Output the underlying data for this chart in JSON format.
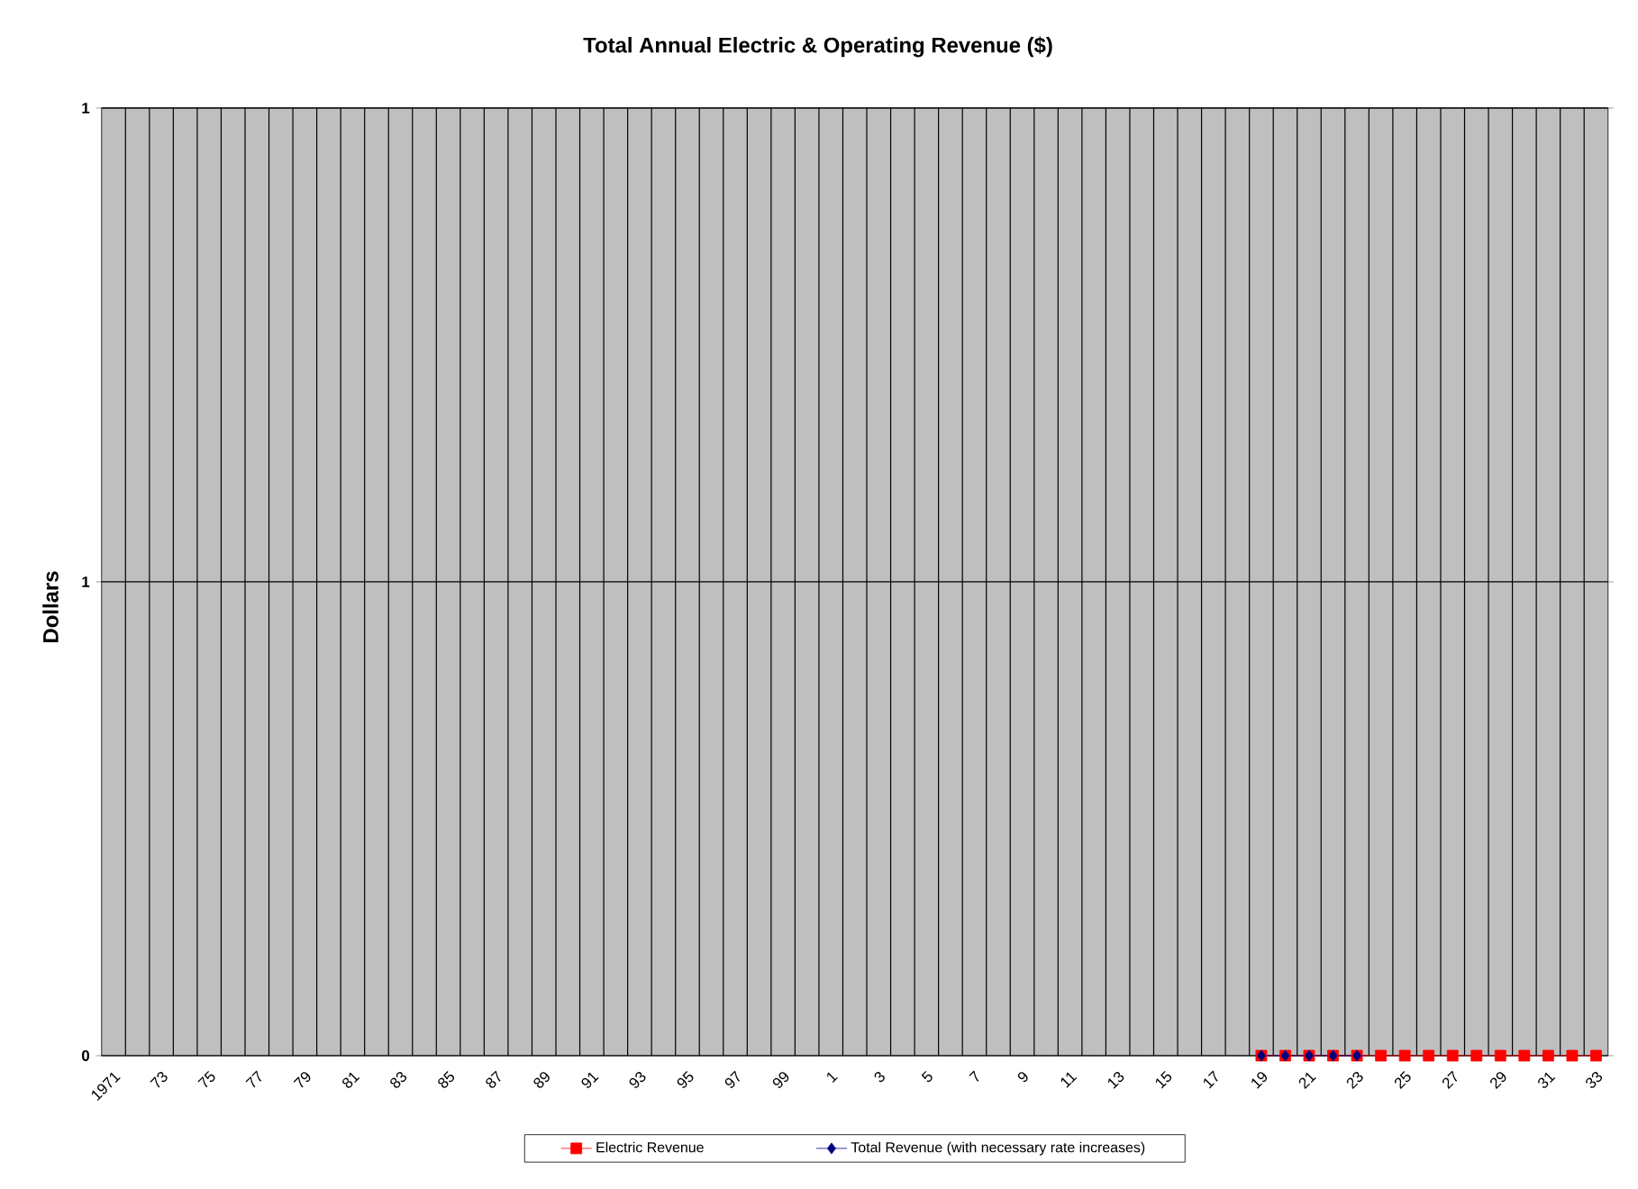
{
  "chart_data": {
    "type": "line",
    "title": "Total Annual Electric & Operating Revenue ($)",
    "ylabel": "Dollars",
    "categories": [
      "1971",
      null,
      "73",
      null,
      "75",
      null,
      "77",
      null,
      "79",
      null,
      "81",
      null,
      "83",
      null,
      "85",
      null,
      "87",
      null,
      "89",
      null,
      "91",
      null,
      "93",
      null,
      "95",
      null,
      "97",
      null,
      "99",
      null,
      "1",
      null,
      "3",
      null,
      "5",
      null,
      "7",
      null,
      "9",
      null,
      "11",
      null,
      "13",
      null,
      "15",
      null,
      "17",
      null,
      "19",
      null,
      "21",
      null,
      "23",
      null,
      "25",
      null,
      "27",
      null,
      "29",
      null,
      "31",
      null,
      "33"
    ],
    "series": [
      {
        "name": "Electric Revenue",
        "color": "#ff0000",
        "marker": "square",
        "values": [
          null,
          null,
          null,
          null,
          null,
          null,
          null,
          null,
          null,
          null,
          null,
          null,
          null,
          null,
          null,
          null,
          null,
          null,
          null,
          null,
          null,
          null,
          null,
          null,
          null,
          null,
          null,
          null,
          null,
          null,
          null,
          null,
          null,
          null,
          null,
          null,
          null,
          null,
          null,
          null,
          null,
          null,
          null,
          null,
          null,
          null,
          null,
          null,
          0,
          0,
          0,
          0,
          0,
          0,
          0,
          0,
          0,
          0,
          0,
          0,
          0,
          0,
          0
        ]
      },
      {
        "name": "Total Revenue (with necessary rate increases)",
        "color": "#000080",
        "marker": "diamond",
        "values": [
          null,
          null,
          null,
          null,
          null,
          null,
          null,
          null,
          null,
          null,
          null,
          null,
          null,
          null,
          null,
          null,
          null,
          null,
          null,
          null,
          null,
          null,
          null,
          null,
          null,
          null,
          null,
          null,
          null,
          null,
          null,
          null,
          null,
          null,
          null,
          null,
          null,
          null,
          null,
          null,
          null,
          null,
          null,
          null,
          null,
          null,
          null,
          null,
          0,
          0,
          0,
          0,
          0,
          null,
          null,
          null,
          null,
          null,
          null,
          null,
          null,
          null,
          null
        ]
      }
    ],
    "ylim": [
      0,
      1
    ],
    "yticks": [
      {
        "value": 0,
        "label": "0"
      },
      {
        "value": 0.5,
        "label": "1"
      },
      {
        "value": 1,
        "label": "1"
      }
    ],
    "grid": true,
    "legend": "bottom"
  }
}
